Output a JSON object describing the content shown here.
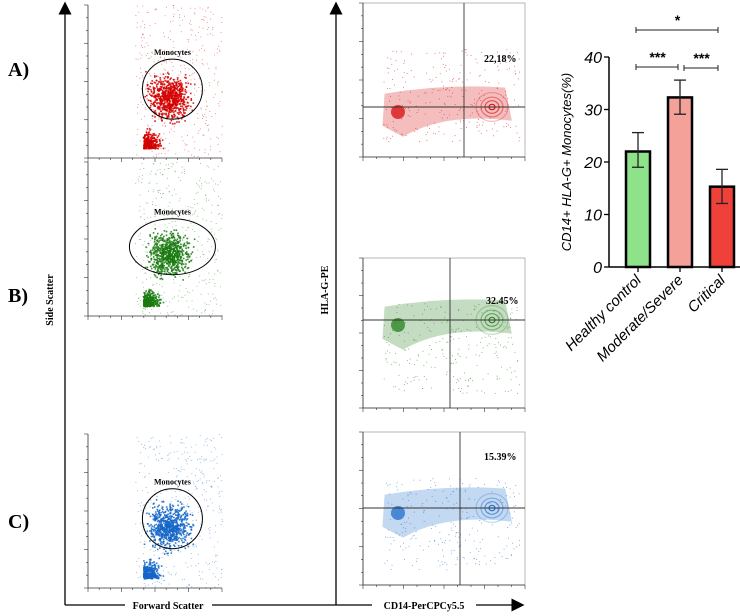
{
  "rows": [
    {
      "label": "A)",
      "color": "#d40000",
      "gate_label": "Monocytes",
      "quadrant_percent": "22,18%"
    },
    {
      "label": "B)",
      "color": "#1a7a10",
      "gate_label": "Monocytes",
      "quadrant_percent": "32.45%"
    },
    {
      "label": "C)",
      "color": "#1466c8",
      "gate_label": "Monocytes",
      "quadrant_percent": "15.39%"
    }
  ],
  "axes": {
    "scatter_y": "Side Scatter",
    "scatter_x": "Forward Scatter",
    "flow_y": "HLA-G-PE",
    "flow_x": "CD14-PerCPCy5.5"
  },
  "chart_data": {
    "type": "bar",
    "categories": [
      "Healthy control",
      "Moderate/Severe",
      "Critical"
    ],
    "values": [
      22.0,
      32.3,
      15.3
    ],
    "error": [
      [
        19.0,
        25.6
      ],
      [
        29.1,
        35.6
      ],
      [
        12.1,
        18.6
      ]
    ],
    "colors": [
      "#8ee38a",
      "#f4a19a",
      "#f0403a"
    ],
    "ylabel": "CD14+ HLA-G+ Monocytes(%)",
    "ylim": [
      0,
      40
    ],
    "yticks": [
      "0",
      "10",
      "20",
      "30",
      "40"
    ],
    "significance": [
      {
        "from": 0,
        "to": 1,
        "label": "***"
      },
      {
        "from": 1,
        "to": 2,
        "label": "***"
      },
      {
        "from": 0,
        "to": 2,
        "label": "*"
      }
    ]
  }
}
